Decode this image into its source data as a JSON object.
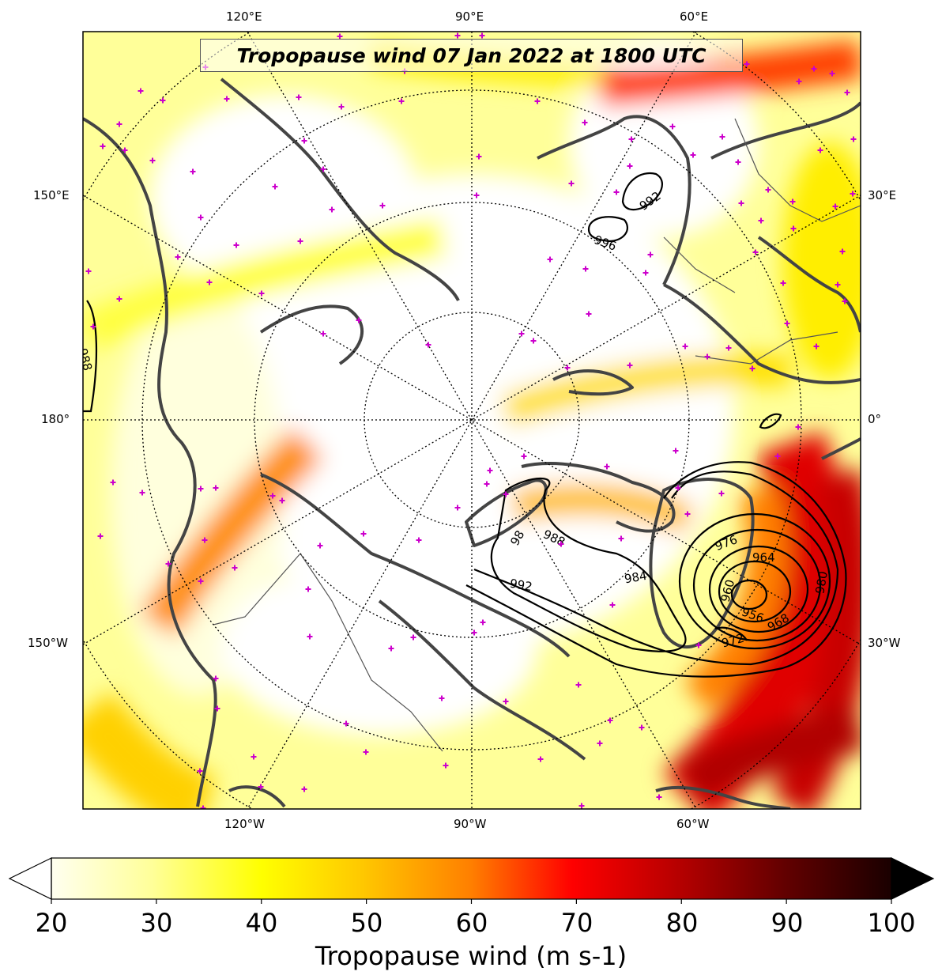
{
  "title": "Tropopause wind 07 Jan 2022 at 1800 UTC",
  "lon_labels": {
    "top": [
      "120°E",
      "90°E",
      "60°E"
    ],
    "bottom": [
      "120°W",
      "90°W",
      "60°W"
    ],
    "left": [
      "150°E",
      "180°",
      "150°W"
    ],
    "right": [
      "30°E",
      "0°",
      "30°W"
    ]
  },
  "contour_labels": [
    "992",
    "996",
    "988",
    "988",
    "984",
    "992",
    "976",
    "964",
    "960",
    "956",
    "968",
    "972",
    "980",
    "98"
  ],
  "colorbar": {
    "ticks": [
      "20",
      "30",
      "40",
      "50",
      "60",
      "70",
      "80",
      "90",
      "100"
    ],
    "label": "Tropopause wind (m s-1)",
    "range": [
      20,
      100
    ],
    "extend": "both"
  },
  "colors": {
    "calm": "#ffffff",
    "light": "#ffff66",
    "moderate": "#ffd000",
    "strong": "#ff7a00",
    "very_strong": "#e00000",
    "extreme": "#200000",
    "coastline": "#444444",
    "station_marker": "#cc00cc"
  }
}
